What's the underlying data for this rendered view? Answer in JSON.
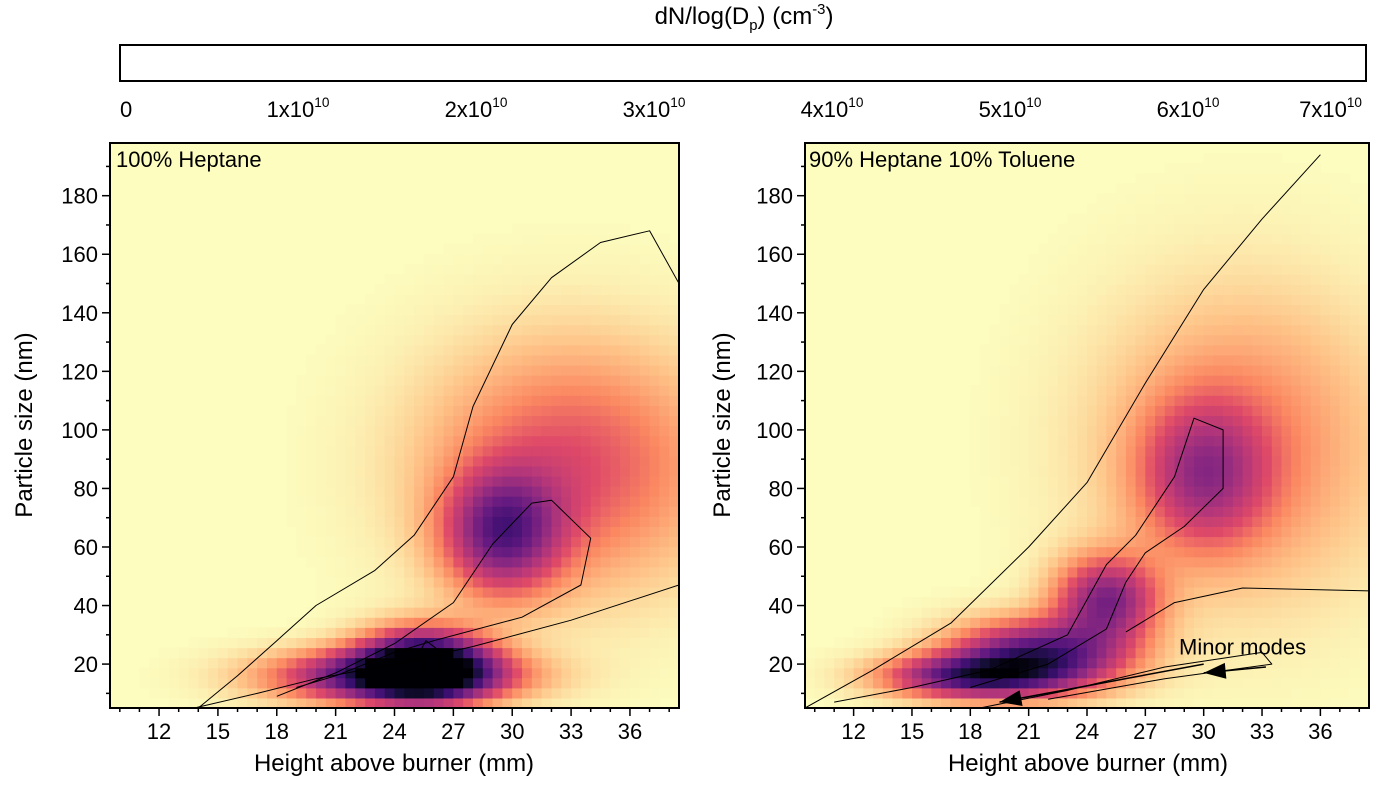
{
  "colorbar": {
    "title": "dN/log(D<sub>p</sub>) (cm<sup>-3</sup>)",
    "ticks": [
      {
        "value": 0,
        "label": "0"
      },
      {
        "value": 10000000000.0,
        "label": "1x10<sup>10</sup>"
      },
      {
        "value": 20000000000.0,
        "label": "2x10<sup>10</sup>"
      },
      {
        "value": 30000000000.0,
        "label": "3x10<sup>10</sup>"
      },
      {
        "value": 40000000000.0,
        "label": "4x10<sup>10</sup>"
      },
      {
        "value": 50000000000.0,
        "label": "5x10<sup>10</sup>"
      },
      {
        "value": 60000000000.0,
        "label": "6x10<sup>10</sup>"
      },
      {
        "value": 70000000000.0,
        "label": "7x10<sup>10</sup>"
      }
    ],
    "range": [
      0,
      70000000000.0
    ],
    "colormap": [
      "#fcfdbf",
      "#fec287",
      "#fb8861",
      "#de4968",
      "#b73779",
      "#8c2981",
      "#641a80",
      "#3b0f70",
      "#150e37",
      "#000004"
    ]
  },
  "chart_data": [
    {
      "type": "heatmap",
      "panel_label": "100% Heptane",
      "xlabel": "Height above burner (mm)",
      "ylabel": "Particle size (nm)",
      "xlim": [
        9.5,
        38.5
      ],
      "ylim": [
        5,
        198
      ],
      "xticks": [
        12,
        15,
        18,
        21,
        24,
        27,
        30,
        33,
        36
      ],
      "yticks": [
        20,
        40,
        60,
        80,
        100,
        120,
        140,
        160,
        180
      ],
      "peaks": [
        {
          "x": 25.5,
          "y": 20,
          "spread_x": 2.2,
          "spread_y": 8,
          "value": 68000000000.0
        },
        {
          "x": 24,
          "y": 16,
          "spread_x": 4,
          "spread_y": 6,
          "value": 55000000000.0
        },
        {
          "x": 29.5,
          "y": 65,
          "spread_x": 2.0,
          "spread_y": 14,
          "value": 40000000000.0
        },
        {
          "x": 33,
          "y": 88,
          "spread_x": 5,
          "spread_y": 28,
          "value": 23000000000.0
        }
      ],
      "contours": [
        [
          [
            13.8,
            5
          ],
          [
            17,
            10
          ],
          [
            20,
            15
          ],
          [
            24,
            20
          ],
          [
            28,
            26
          ],
          [
            33,
            35
          ],
          [
            38.5,
            47
          ]
        ],
        [
          [
            18,
            9
          ],
          [
            21,
            17
          ],
          [
            24,
            27
          ],
          [
            27,
            41
          ],
          [
            29,
            61
          ],
          [
            31,
            75
          ],
          [
            32,
            76
          ],
          [
            34,
            63
          ],
          [
            33.5,
            47
          ],
          [
            30.5,
            36
          ],
          [
            26,
            28
          ],
          [
            24,
            24
          ],
          [
            21,
            16
          ],
          [
            19,
            12
          ]
        ],
        [
          [
            25.6,
            18
          ],
          [
            25.2,
            23
          ],
          [
            25.6,
            28
          ],
          [
            26.4,
            24
          ],
          [
            26.2,
            18
          ]
        ],
        [
          [
            14,
            5
          ],
          [
            16,
            16
          ],
          [
            18,
            28
          ],
          [
            20,
            40
          ],
          [
            23,
            52
          ],
          [
            25,
            64
          ],
          [
            27,
            84
          ],
          [
            28,
            108
          ],
          [
            30,
            136
          ],
          [
            32,
            152
          ],
          [
            34.5,
            164
          ],
          [
            37,
            168
          ],
          [
            38.5,
            150
          ]
        ]
      ]
    },
    {
      "type": "heatmap",
      "panel_label": "90% Heptane 10% Toluene",
      "xlabel": "Height above burner (mm)",
      "ylabel": "Particle size (nm)",
      "xlim": [
        9.5,
        38.5
      ],
      "ylim": [
        5,
        198
      ],
      "xticks": [
        12,
        15,
        18,
        21,
        24,
        27,
        30,
        33,
        36
      ],
      "yticks": [
        20,
        40,
        60,
        80,
        100,
        120,
        140,
        160,
        180
      ],
      "peaks": [
        {
          "x": 21.5,
          "y": 23,
          "spread_x": 3,
          "spread_y": 8,
          "value": 52000000000.0
        },
        {
          "x": 18,
          "y": 16,
          "spread_x": 3,
          "spread_y": 5,
          "value": 46000000000.0
        },
        {
          "x": 25,
          "y": 42,
          "spread_x": 1.8,
          "spread_y": 10,
          "value": 40000000000.0
        },
        {
          "x": 30,
          "y": 85,
          "spread_x": 2.2,
          "spread_y": 17,
          "value": 26000000000.0
        },
        {
          "x": 32,
          "y": 95,
          "spread_x": 5,
          "spread_y": 35,
          "value": 16000000000.0
        }
      ],
      "contours": [
        [
          [
            11,
            7
          ],
          [
            15,
            12
          ],
          [
            19,
            18
          ],
          [
            23,
            30
          ],
          [
            25,
            54
          ],
          [
            26.5,
            64
          ],
          [
            28.5,
            84
          ],
          [
            29.5,
            104
          ],
          [
            31,
            100
          ],
          [
            31,
            80
          ],
          [
            29,
            67
          ],
          [
            27,
            58
          ],
          [
            26,
            48
          ],
          [
            25,
            32
          ],
          [
            22,
            20
          ],
          [
            18,
            12
          ]
        ],
        [
          [
            9.5,
            5
          ],
          [
            13,
            18
          ],
          [
            17,
            34
          ],
          [
            21,
            60
          ],
          [
            24,
            82
          ],
          [
            27,
            116
          ],
          [
            30,
            148
          ],
          [
            33,
            172
          ],
          [
            36,
            194
          ]
        ],
        [
          [
            18.5,
            5
          ],
          [
            23,
            11
          ],
          [
            28,
            19
          ],
          [
            33,
            24
          ],
          [
            33.5,
            20
          ],
          [
            28,
            15
          ],
          [
            22,
            8
          ]
        ],
        [
          [
            26,
            31
          ],
          [
            28.5,
            41
          ],
          [
            32,
            46
          ],
          [
            38.5,
            45
          ]
        ]
      ],
      "annotation": {
        "text": "Minor modes",
        "text_at": {
          "x": 32,
          "y": 26
        },
        "arrows": [
          {
            "from": {
              "x": 30,
              "y": 20
            },
            "to": {
              "x": 19.5,
              "y": 7
            }
          },
          {
            "from": {
              "x": 33.2,
              "y": 19
            },
            "to": {
              "x": 30,
              "y": 17
            }
          }
        ]
      }
    }
  ]
}
